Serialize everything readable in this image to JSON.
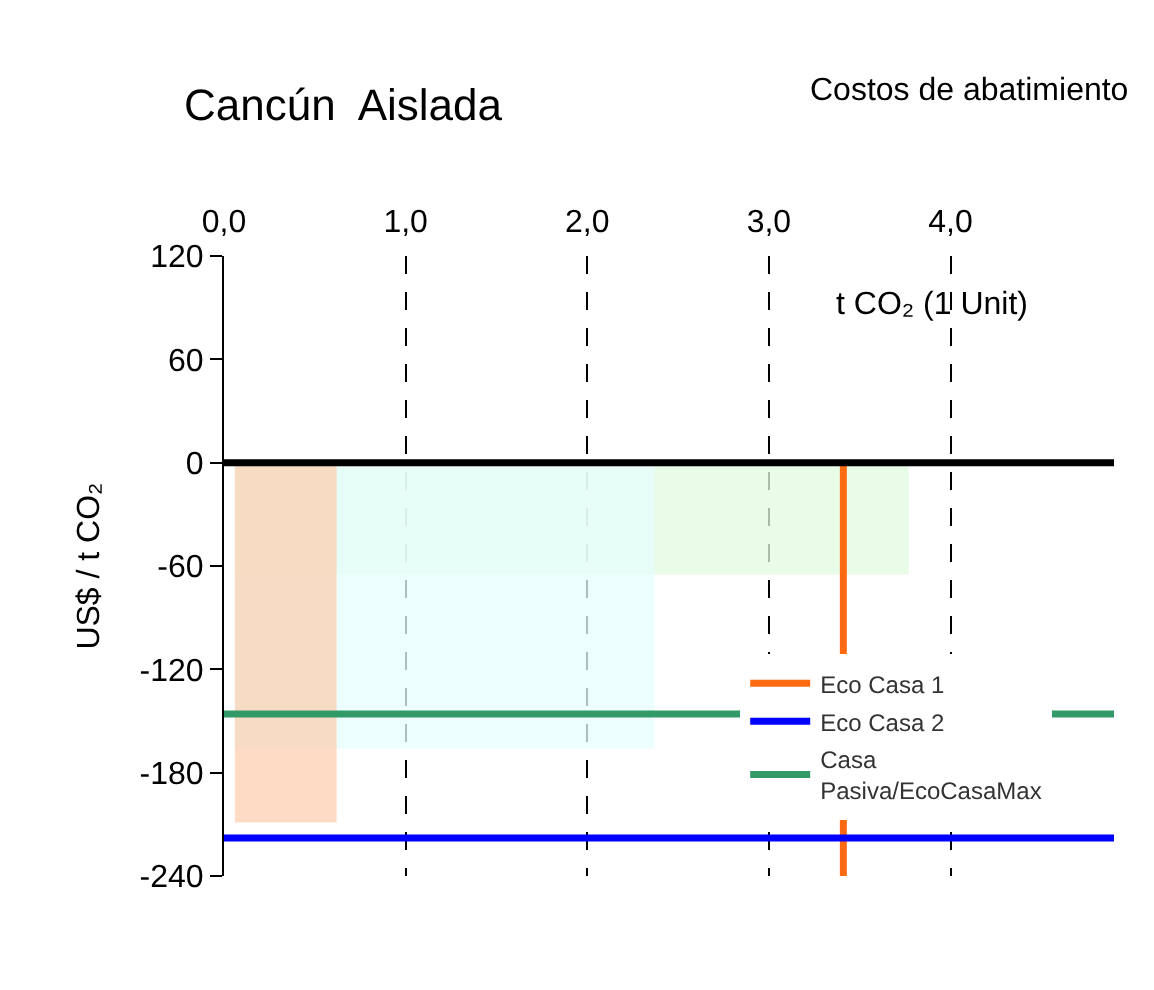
{
  "chart_data": {
    "type": "line",
    "title": "Cancún  Aislada",
    "subtitle": "Costos de abatimiento",
    "xlabel": "t CO₂ (1 Unit)",
    "ylabel": "US$ / t CO₂",
    "xlim": [
      0,
      4.9
    ],
    "xticks": [
      {
        "value": 0,
        "label": "0,0"
      },
      {
        "value": 1,
        "label": "1,0"
      },
      {
        "value": 2,
        "label": "2,0"
      },
      {
        "value": 3,
        "label": "3,0"
      },
      {
        "value": 4,
        "label": "4,0"
      }
    ],
    "ylim": [
      -240,
      120
    ],
    "yticks": [
      120,
      60,
      0,
      -60,
      -120,
      -180,
      -240
    ],
    "grid": "x",
    "legend": "bottom right",
    "ref_lines": [
      {
        "axis": "y",
        "value": 0,
        "color": "#000000"
      }
    ],
    "series": [
      {
        "type": "area",
        "color": "#e0fbe0",
        "x": [
          0.06,
          3.77
        ],
        "values": [
          -65,
          -65
        ]
      },
      {
        "type": "area",
        "color": "#e6fdfd",
        "x": [
          0.06,
          2.37
        ],
        "values": [
          -166,
          -166
        ]
      },
      {
        "type": "area",
        "color": "#fccfb0",
        "x": [
          0.06,
          0.62
        ],
        "values": [
          -209,
          -209
        ]
      },
      {
        "name": "Eco Casa 1",
        "color": "#ff6a13",
        "x": [
          3.41,
          3.41
        ],
        "values": [
          0,
          -240
        ]
      },
      {
        "name": "Eco Casa 2",
        "color": "#0000ff",
        "x": [
          0,
          4.9
        ],
        "values": [
          -218,
          -218
        ]
      },
      {
        "name": "Casa Pasiva/EcoCasaMax",
        "color": "#339966",
        "x": [
          0,
          4.9
        ],
        "values": [
          -146,
          -146
        ]
      }
    ]
  }
}
